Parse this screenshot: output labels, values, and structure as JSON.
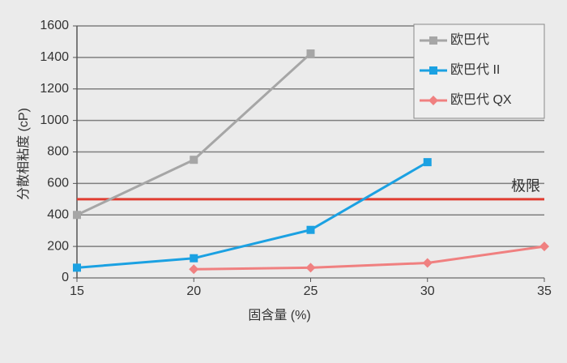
{
  "chart_data": {
    "type": "line",
    "x_label": "固含量 (%)",
    "y_label": "分散相粘度 (cP)",
    "x": [
      15,
      20,
      25,
      30,
      35
    ],
    "series": [
      {
        "name": "欧巴代",
        "color": "#a6a6a6",
        "marker": "square",
        "values": [
          400,
          750,
          1425,
          null,
          null
        ]
      },
      {
        "name": "欧巴代 II",
        "color": "#1ba1e2",
        "marker": "square",
        "values": [
          65,
          125,
          305,
          735,
          null
        ]
      },
      {
        "name": "欧巴代 QX",
        "color": "#f08080",
        "marker": "diamond",
        "values": [
          null,
          55,
          65,
          95,
          200
        ]
      }
    ],
    "reference_line": {
      "value": 500,
      "label": "极限",
      "color": "#e03c31"
    },
    "xlim": [
      15,
      35
    ],
    "xticks": [
      15,
      20,
      25,
      30,
      35
    ],
    "ylim": [
      0,
      1600
    ],
    "yticks": [
      0,
      200,
      400,
      600,
      800,
      1000,
      1200,
      1400,
      1600
    ],
    "grid": true,
    "legend": "upper right"
  }
}
